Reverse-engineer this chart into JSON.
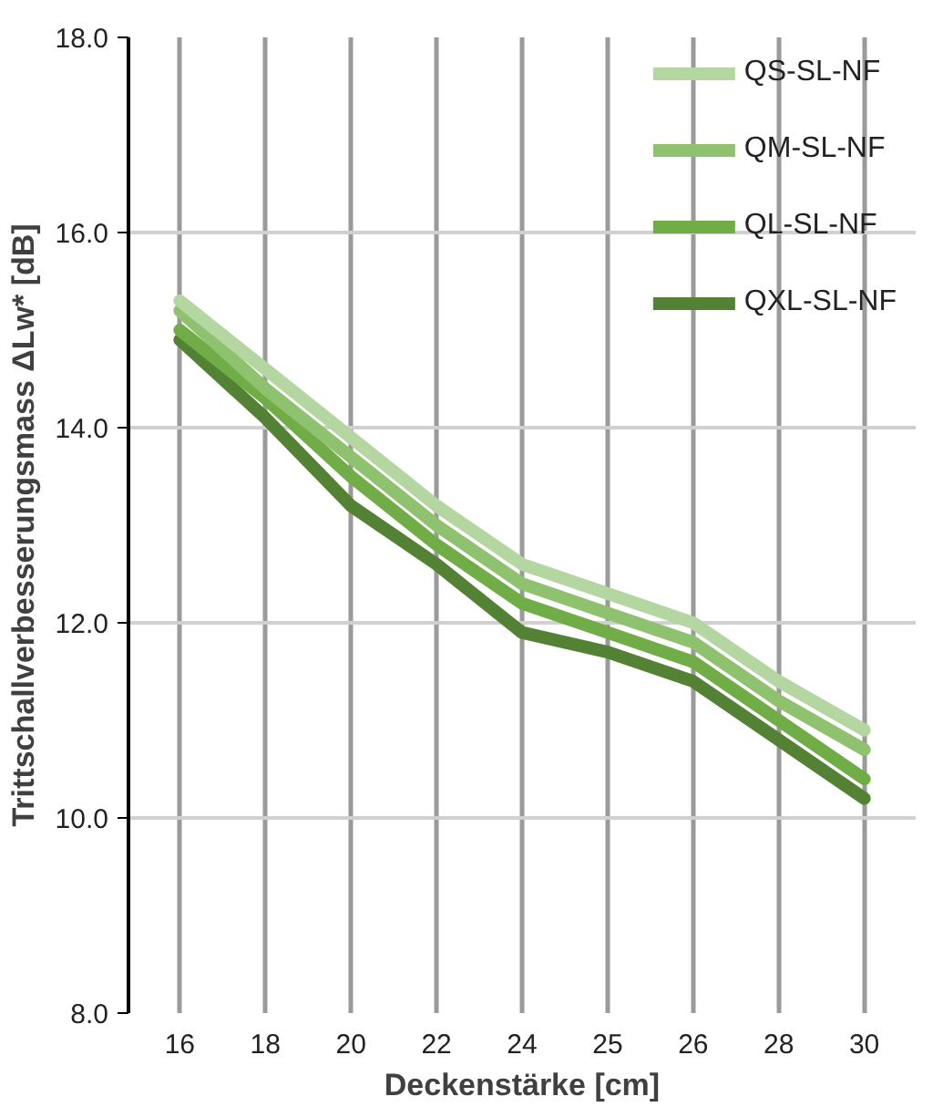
{
  "chart_data": {
    "type": "line",
    "xlabel": "Deckenstärke [cm]",
    "ylabel": "Trittschallverbesserungsmass ΔLw* [dB]",
    "categories": [
      "16",
      "18",
      "20",
      "22",
      "24",
      "25",
      "26",
      "28",
      "30"
    ],
    "series": [
      {
        "name": "QS-SL-NF",
        "color": "#b4d6a0",
        "values": [
          15.3,
          14.6,
          13.9,
          13.2,
          12.6,
          12.3,
          12.0,
          11.4,
          10.9
        ]
      },
      {
        "name": "QM-SL-NF",
        "color": "#8fc26e",
        "values": [
          15.2,
          14.4,
          13.7,
          13.0,
          12.4,
          12.1,
          11.8,
          11.2,
          10.7
        ]
      },
      {
        "name": "QL-SL-NF",
        "color": "#70ad47",
        "values": [
          15.0,
          14.3,
          13.5,
          12.8,
          12.2,
          11.9,
          11.6,
          11.0,
          10.4
        ]
      },
      {
        "name": "QXL-SL-NF",
        "color": "#548235",
        "values": [
          14.9,
          14.1,
          13.2,
          12.6,
          11.9,
          11.7,
          11.4,
          10.8,
          10.2
        ]
      }
    ],
    "ylim": [
      8,
      18
    ],
    "yticks": [
      {
        "value": 8,
        "label": "8.0"
      },
      {
        "value": 10,
        "label": "10.0"
      },
      {
        "value": 12,
        "label": "12.0"
      },
      {
        "value": 14,
        "label": "14.0"
      },
      {
        "value": 16,
        "label": "16.0"
      },
      {
        "value": 18,
        "label": "18.0"
      }
    ],
    "grid": true,
    "legend": "top right",
    "marker": "none",
    "line_style": "solid"
  }
}
